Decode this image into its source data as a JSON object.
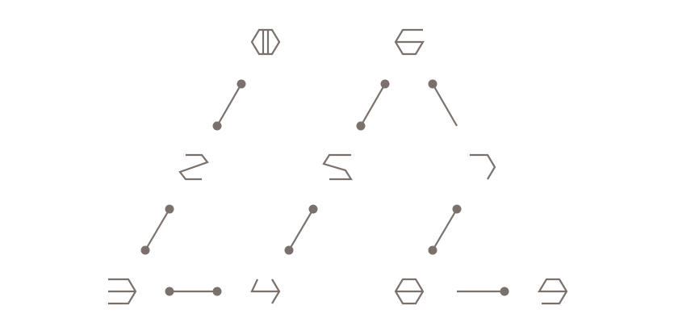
{
  "diagram": {
    "title": "",
    "stroke_color": "#7a716d",
    "background": "#ffffff",
    "glyphs": [
      {
        "id": "g1",
        "name": "hexagon-vertical-bar-glyph"
      },
      {
        "id": "g2",
        "name": "hexagon-bottom-half-c-glyph"
      },
      {
        "id": "g3",
        "name": "hexagon-z-glyph"
      },
      {
        "id": "g4",
        "name": "hexagon-s-glyph"
      },
      {
        "id": "g5",
        "name": "hexagon-right-bracket-glyph"
      },
      {
        "id": "g6",
        "name": "hexagon-mirrored-e-glyph"
      },
      {
        "id": "g7",
        "name": "hexagon-four-glyph"
      },
      {
        "id": "g8",
        "name": "full-hexagon-glyph"
      },
      {
        "id": "g9",
        "name": "hexagon-nine-glyph"
      }
    ],
    "connectors": [
      {
        "id": "c1",
        "from": "g1",
        "to": "g3",
        "dots": "both"
      },
      {
        "id": "c2",
        "from": "g2",
        "to": "g4",
        "dots": "both"
      },
      {
        "id": "c3",
        "from": "g2",
        "to": "g5",
        "dots": "start"
      },
      {
        "id": "c4",
        "from": "g3",
        "to": "g6",
        "dots": "both"
      },
      {
        "id": "c5",
        "from": "g4",
        "to": "g7",
        "dots": "both"
      },
      {
        "id": "c6",
        "from": "g5",
        "to": "g8",
        "dots": "both"
      },
      {
        "id": "c7",
        "from": "g6",
        "to": "g7",
        "dots": "both"
      },
      {
        "id": "c8",
        "from": "g8",
        "to": "g9",
        "dots": "end"
      }
    ]
  }
}
